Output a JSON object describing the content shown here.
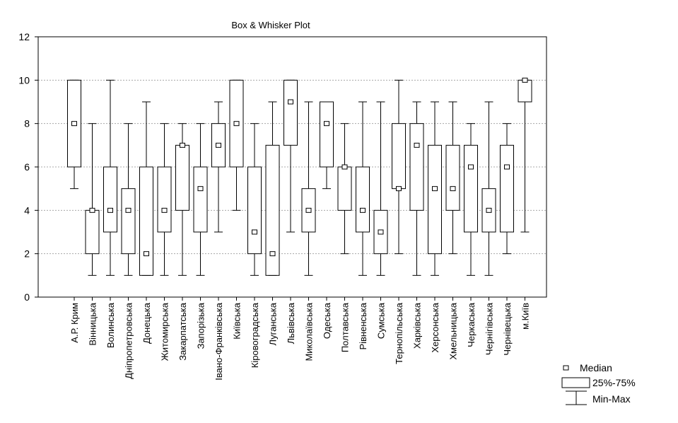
{
  "chart_data": {
    "type": "box",
    "title": "Box & Whisker Plot",
    "xlabel": "",
    "ylabel": "",
    "ylim": [
      0,
      12
    ],
    "y_ticks": [
      "0",
      "2",
      "4",
      "6",
      "8",
      "10",
      "12"
    ],
    "grid": true,
    "legend_position": "bottom-right",
    "legend": {
      "median": "Median",
      "box": "25%-75%",
      "whisker": "Min-Max"
    },
    "categories": [
      "А.Р. Крим",
      "Вінницька",
      "Волинська",
      "Дніпропетровська",
      "Донецька",
      "Житомирська",
      "Закарпатська",
      "Запорізька",
      "Івано-Франківська",
      "Київська",
      "Кіровоградська",
      "Луганська",
      "Львівська",
      "Миколаївська",
      "Одеська",
      "Полтавська",
      "Рівненська",
      "Сумська",
      "Тернопільська",
      "Харківська",
      "Херсонська",
      "Хмельницька",
      "Черкаська",
      "Чернігівська",
      "Чернівецька",
      "м.Київ"
    ],
    "min": [
      5,
      1,
      1,
      1,
      1,
      1,
      1,
      1,
      3,
      4,
      1,
      1,
      3,
      1,
      5,
      2,
      1,
      1,
      2,
      1,
      1,
      2,
      1,
      1,
      2,
      3
    ],
    "q1": [
      6,
      2,
      3,
      2,
      1,
      3,
      4,
      3,
      6,
      6,
      2,
      1,
      7,
      3,
      6,
      4,
      3,
      2,
      5,
      4,
      2,
      4,
      3,
      3,
      3,
      9
    ],
    "median": [
      8,
      4,
      4,
      4,
      2,
      4,
      7,
      5,
      7,
      8,
      3,
      2,
      9,
      4,
      8,
      6,
      4,
      3,
      5,
      7,
      5,
      5,
      6,
      4,
      6,
      10
    ],
    "q3": [
      10,
      4,
      6,
      5,
      6,
      6,
      7,
      6,
      8,
      10,
      6,
      7,
      10,
      5,
      9,
      6,
      6,
      4,
      8,
      8,
      7,
      7,
      7,
      5,
      7,
      10
    ],
    "max": [
      10,
      8,
      10,
      8,
      9,
      8,
      8,
      8,
      9,
      10,
      8,
      9,
      10,
      9,
      9,
      8,
      9,
      9,
      10,
      9,
      9,
      9,
      8,
      9,
      8,
      10
    ]
  }
}
